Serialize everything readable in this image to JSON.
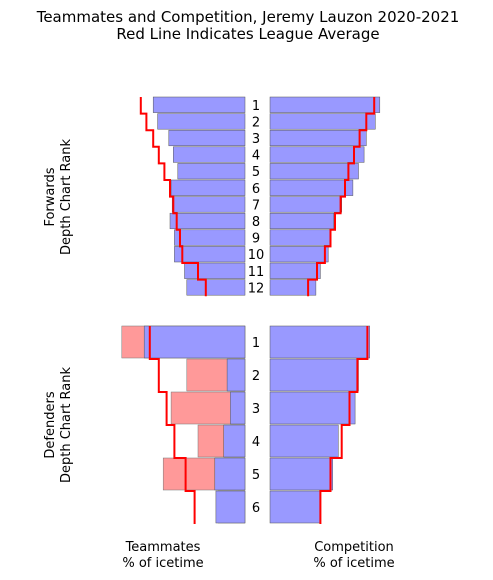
{
  "chart_data": {
    "type": "bar",
    "title_lines": [
      "Teammates and Competition, Jeremy Lauzon 2020-2021",
      "Red Line Indicates League Average"
    ],
    "forwards": {
      "ylabel_lines": [
        "Forwards",
        "Depth Chart Rank"
      ],
      "ranks": [
        "1",
        "2",
        "3",
        "4",
        "5",
        "6",
        "7",
        "8",
        "9",
        "10",
        "11",
        "12"
      ],
      "teammates": [
        0.82,
        0.78,
        0.68,
        0.64,
        0.6,
        0.66,
        0.65,
        0.67,
        0.63,
        0.63,
        0.54,
        0.52
      ],
      "teammates_league_avg": [
        0.93,
        0.88,
        0.82,
        0.77,
        0.72,
        0.67,
        0.64,
        0.61,
        0.58,
        0.56,
        0.42,
        0.35
      ],
      "competition": [
        0.98,
        0.94,
        0.86,
        0.84,
        0.79,
        0.74,
        0.64,
        0.57,
        0.54,
        0.52,
        0.45,
        0.41
      ],
      "competition_league_avg": [
        0.93,
        0.86,
        0.8,
        0.75,
        0.7,
        0.67,
        0.63,
        0.58,
        0.54,
        0.49,
        0.42,
        0.34
      ]
    },
    "defenders": {
      "ylabel_lines": [
        "Defenders",
        "Depth Chart Rank"
      ],
      "ranks": [
        "1",
        "2",
        "3",
        "4",
        "5",
        "6"
      ],
      "teammates_blue": [
        0.9,
        0.16,
        0.13,
        0.19,
        0.27,
        0.26
      ],
      "teammates_red": [
        1.1,
        0.52,
        0.66,
        0.42,
        0.73,
        0.24
      ],
      "teammates_league_avg": [
        0.85,
        0.77,
        0.7,
        0.63,
        0.53,
        0.45
      ],
      "competition": [
        0.89,
        0.79,
        0.76,
        0.61,
        0.56,
        0.45
      ],
      "competition_league_avg": [
        0.87,
        0.78,
        0.71,
        0.64,
        0.54,
        0.45
      ]
    },
    "xlabel_left_lines": [
      "Teammates",
      "% of icetime"
    ],
    "xlabel_right_lines": [
      "Competition",
      "% of icetime"
    ],
    "colors": {
      "bar_blue": "#9999ff",
      "bar_red": "#ff9999",
      "league_line": "#ff0000"
    }
  }
}
